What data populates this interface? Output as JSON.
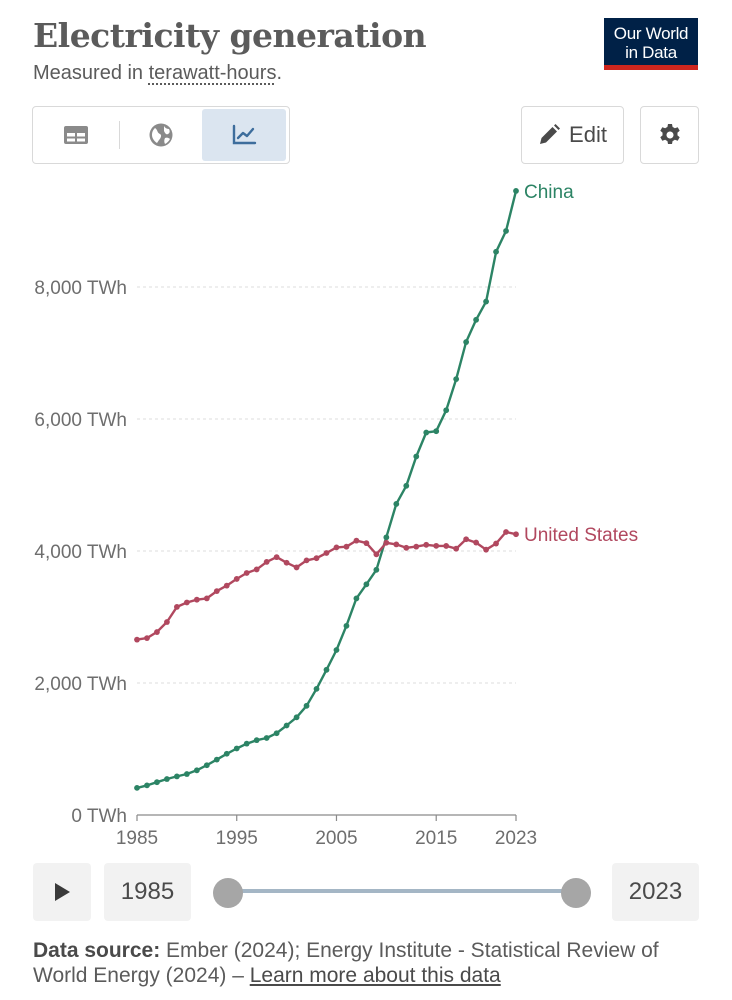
{
  "header": {
    "title": "Electricity generation",
    "subtitle_prefix": "Measured in ",
    "subtitle_link": "terawatt-hours",
    "subtitle_suffix": ".",
    "logo_line1": "Our World",
    "logo_line2": "in Data"
  },
  "toolbar": {
    "tabs": [
      {
        "name": "table",
        "icon": "table-icon",
        "active": false
      },
      {
        "name": "map",
        "icon": "globe-icon",
        "active": false
      },
      {
        "name": "chart",
        "icon": "line-chart-icon",
        "active": true
      }
    ],
    "edit_label": "Edit",
    "settings_icon": "gear-icon"
  },
  "colors": {
    "china": "#2c8465",
    "united_states": "#b1485f",
    "active_tab": "#dbe5f0",
    "logo_bg": "#002147",
    "logo_accent": "#ce261e"
  },
  "chart_data": {
    "type": "line",
    "title": "Electricity generation",
    "subtitle": "Measured in terawatt-hours.",
    "xlabel": "",
    "ylabel": "",
    "x": [
      1985,
      1986,
      1987,
      1988,
      1989,
      1990,
      1991,
      1992,
      1993,
      1994,
      1995,
      1996,
      1997,
      1998,
      1999,
      2000,
      2001,
      2002,
      2003,
      2004,
      2005,
      2006,
      2007,
      2008,
      2009,
      2010,
      2011,
      2012,
      2013,
      2014,
      2015,
      2016,
      2017,
      2018,
      2019,
      2020,
      2021,
      2022,
      2023
    ],
    "series": [
      {
        "name": "China",
        "color": "#2c8465",
        "values": [
          411,
          449,
          497,
          545,
          585,
          621,
          677,
          754,
          839,
          928,
          1008,
          1081,
          1134,
          1167,
          1239,
          1356,
          1480,
          1654,
          1911,
          2200,
          2500,
          2866,
          3282,
          3495,
          3715,
          4207,
          4713,
          4988,
          5432,
          5795,
          5815,
          6133,
          6604,
          7166,
          7503,
          7779,
          8534,
          8849,
          9456
        ]
      },
      {
        "name": "United States",
        "color": "#b1485f",
        "values": [
          2657,
          2680,
          2772,
          2924,
          3153,
          3220,
          3262,
          3282,
          3392,
          3475,
          3577,
          3667,
          3721,
          3835,
          3907,
          3822,
          3751,
          3858,
          3891,
          3970,
          4055,
          4065,
          4157,
          4119,
          3950,
          4125,
          4100,
          4048,
          4066,
          4094,
          4078,
          4077,
          4035,
          4178,
          4128,
          4020,
          4113,
          4288,
          4254
        ]
      }
    ],
    "xticks": [
      "1985",
      "1995",
      "2005",
      "2015",
      "2023"
    ],
    "yticks": [
      "0 TWh",
      "2,000 TWh",
      "4,000 TWh",
      "6,000 TWh",
      "8,000 TWh"
    ],
    "ylim": [
      0,
      9500
    ],
    "grid": true,
    "legend": "inline-end-labels"
  },
  "timeline": {
    "start_year": "1985",
    "end_year": "2023",
    "play_icon": "play-icon"
  },
  "footer": {
    "source_label": "Data source:",
    "source_text": " Ember (2024); Energy Institute - Statistical Review of World Energy (2024) – ",
    "learn_more": "Learn more about this data"
  }
}
